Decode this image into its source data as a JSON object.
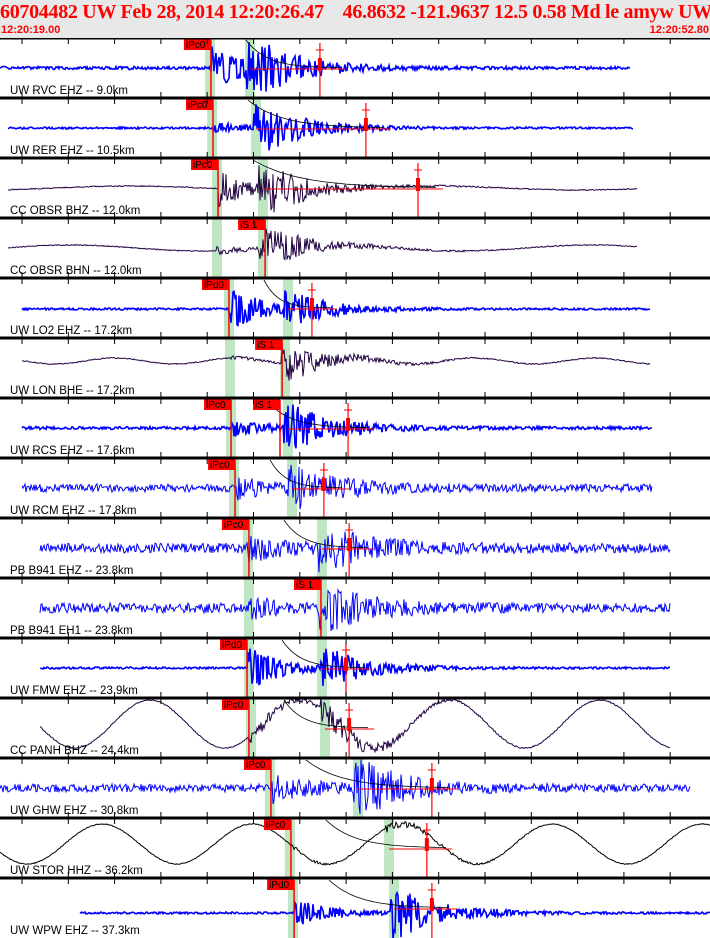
{
  "header": {
    "title": "60704482 UW Feb 28, 2014 12:20:26.47    46.8632 -121.9637 12.5 0.58 Md le amyw UW 01    2",
    "start_time": "12:20:19.00",
    "end_time": "12:20:52.80"
  },
  "colors": {
    "pick": "#ff0000",
    "window": "#bfe6c3",
    "vertical": "#0000ff",
    "broadband": "#200040",
    "other": "#000000"
  },
  "stations": [
    {
      "label": "UW RVC EHZ -- 9.0km",
      "color": "#0000ff",
      "picks": [
        {
          "label": "iPc0",
          "time": 29.04
        }
      ],
      "amp_time": 34.23,
      "p_band": 29.0,
      "s_band": 30.9
    },
    {
      "label": "UW RER EHZ -- 10.5km",
      "color": "#0000ff",
      "picks": [
        {
          "label": "iPc0",
          "time": 29.14
        }
      ],
      "amp_time": 36.42,
      "p_band": 29.1,
      "s_band": 31.19
    },
    {
      "label": "CC OBSR BHZ -- 12.0km",
      "color": "#200040",
      "picks": [
        {
          "label": "iPc0",
          "time": 29.38
        }
      ],
      "amp_time": 38.9,
      "p_band": 29.33,
      "s_band": 31.52
    },
    {
      "label": "CC OBSR BHN -- 12.0km",
      "color": "#200040",
      "picks": [
        {
          "label": "iS 1",
          "time": 31.62
        }
      ],
      "amp_time": null,
      "p_band": 29.33,
      "s_band": 31.52
    },
    {
      "label": "UW LO2 EHZ -- 17.2km",
      "color": "#0000ff",
      "picks": [
        {
          "label": "iPd0",
          "time": 29.9
        }
      ],
      "amp_time": 33.85,
      "p_band": 29.9,
      "s_band": 32.71
    },
    {
      "label": "UW LON BHE -- 17.2km",
      "color": "#200040",
      "picks": [
        {
          "label": "iS 1",
          "time": 32.43
        }
      ],
      "amp_time": null,
      "p_band": 29.95,
      "s_band": 32.57
    },
    {
      "label": "UW RCS EHZ -- 17.6km",
      "color": "#0000ff",
      "picks": [
        {
          "label": "iPc0",
          "time": 30.0
        },
        {
          "label": "iS 1",
          "time": 32.33
        }
      ],
      "amp_time": 35.57,
      "p_band": 30.0,
      "s_band": 32.71
    },
    {
      "label": "UW RCM EHZ -- 17.8km",
      "color": "#0000ff",
      "picks": [
        {
          "label": "iPc0",
          "time": 30.19
        }
      ],
      "amp_time": 34.42,
      "p_band": 30.14,
      "s_band": 32.9
    },
    {
      "label": "PB B941 EHZ -- 23.8km",
      "color": "#0000ff",
      "picks": [
        {
          "label": "iPc0",
          "time": 30.85
        }
      ],
      "amp_time": 35.62,
      "p_band": 30.8,
      "s_band": 34.33
    },
    {
      "label": "PB B941 EH1 -- 23.8km",
      "color": "#0000ff",
      "picks": [
        {
          "label": "iS 1",
          "time": 34.28
        }
      ],
      "amp_time": null,
      "p_band": 30.85,
      "s_band": 34.33
    },
    {
      "label": "UW FMW EHZ -- 23.9km",
      "color": "#0000ff",
      "picks": [
        {
          "label": "iPd0",
          "time": 30.76
        }
      ],
      "amp_time": 35.47,
      "p_band": 30.85,
      "s_band": 34.33
    },
    {
      "label": "CC PANH BHZ -- 24.4km",
      "color": "#200040",
      "picks": [
        {
          "label": "iPc0",
          "time": 30.85
        }
      ],
      "amp_time": 35.62,
      "p_band": 30.95,
      "s_band": 34.47
    },
    {
      "label": "UW GHW EHZ -- 30.8km",
      "color": "#0000ff",
      "picks": [
        {
          "label": "iPc0",
          "time": 31.9
        }
      ],
      "amp_time": 39.56,
      "p_band": 31.85,
      "s_band": 36.04
    },
    {
      "label": "UW STOR HHZ -- 36.2km",
      "color": "#000000",
      "picks": [
        {
          "label": "iPc0",
          "time": 32.85
        }
      ],
      "amp_time": 39.32,
      "p_band": 32.8,
      "s_band": 37.52
    },
    {
      "label": "UW WPW EHZ -- 37.3km",
      "color": "#0000ff",
      "picks": [
        {
          "label": "iPd0",
          "time": 33.0
        }
      ],
      "amp_time": 39.56,
      "p_band": 32.95,
      "s_band": 37.76
    }
  ]
}
